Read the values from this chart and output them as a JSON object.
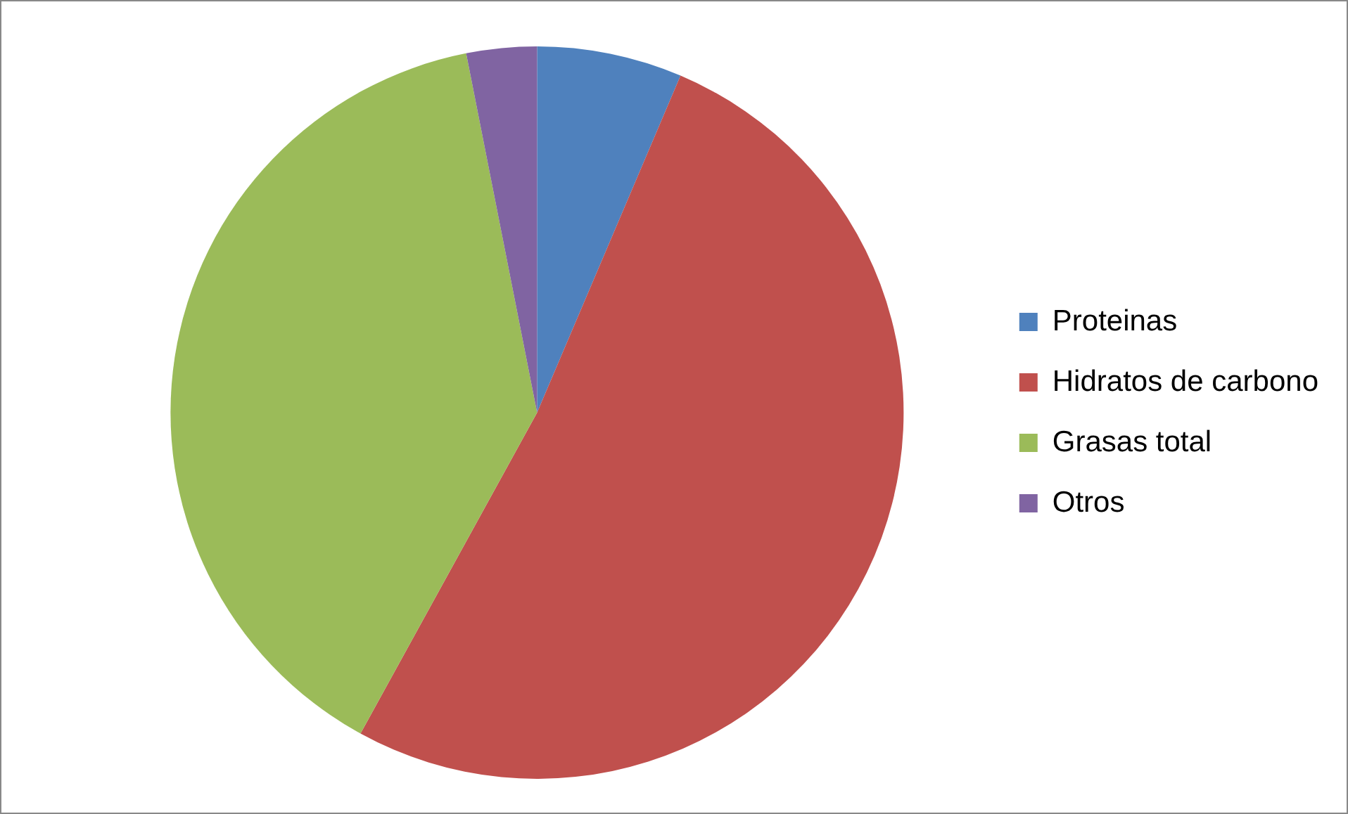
{
  "chart_data": {
    "type": "pie",
    "categories": [
      "Proteinas",
      "Hidratos de carbono",
      "Grasas total",
      "Otros"
    ],
    "values": [
      6.4,
      51.6,
      38.9,
      3.1
    ],
    "colors": [
      "#4f81bd",
      "#c0504d",
      "#9bbb59",
      "#8064a2"
    ],
    "legend": "right"
  }
}
